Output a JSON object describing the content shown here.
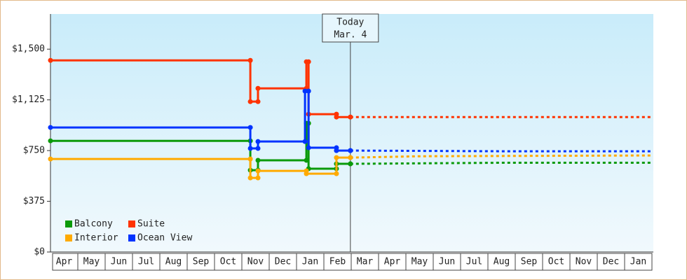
{
  "chart_data": {
    "type": "step-line",
    "categories": [
      "Apr",
      "May",
      "Jun",
      "Jul",
      "Aug",
      "Sep",
      "Oct",
      "Nov",
      "Dec",
      "Jan",
      "Feb",
      "Mar",
      "Apr",
      "May",
      "Jun",
      "Jul",
      "Aug",
      "Sep",
      "Oct",
      "Nov",
      "Dec",
      "Jan"
    ],
    "xlim": [
      0,
      22
    ],
    "ylim": [
      0,
      1760
    ],
    "yticks": [
      {
        "value": 0,
        "label": "$0"
      },
      {
        "value": 375,
        "label": "$375"
      },
      {
        "value": 750,
        "label": "$750"
      },
      {
        "value": 1125,
        "label": "$1,125"
      },
      {
        "value": 1500,
        "label": "$1,500"
      }
    ],
    "annotation": {
      "x": 10.97,
      "lines": [
        "Today",
        "Mar. 4"
      ]
    },
    "legend": "lower left",
    "series": [
      {
        "name": "Balcony",
        "color": "#0a9a0a",
        "x": [
          0,
          7.31,
          7.59,
          9.36,
          9.44,
          10.46,
          10.97
        ],
        "values": [
          822,
          605,
          678,
          952,
          616,
          652,
          652
        ],
        "forecast": {
          "x": [
            10.97,
            16.5,
            22
          ],
          "values": [
            652,
            660,
            660
          ]
        }
      },
      {
        "name": "Suite",
        "color": "#ff3300",
        "x": [
          0,
          7.31,
          7.59,
          9.36,
          9.44,
          10.46,
          10.97
        ],
        "values": [
          1417,
          1112,
          1210,
          1407,
          1019,
          998,
          998
        ],
        "forecast": {
          "x": [
            10.97,
            22
          ],
          "values": [
            998,
            998
          ]
        }
      },
      {
        "name": "Interior",
        "color": "#ffaa00",
        "x": [
          0,
          7.31,
          7.59,
          9.36,
          10.46,
          10.97
        ],
        "values": [
          688,
          548,
          600,
          579,
          698,
          698
        ],
        "forecast": {
          "x": [
            10.97,
            13.5,
            22
          ],
          "values": [
            698,
            708,
            714
          ]
        }
      },
      {
        "name": "Ocean View",
        "color": "#0033ff",
        "x": [
          0,
          7.31,
          7.59,
          9.31,
          9.44,
          10.46,
          10.97
        ],
        "values": [
          921,
          766,
          817,
          1190,
          771,
          750,
          750
        ],
        "forecast": {
          "x": [
            10.97,
            16.5,
            22
          ],
          "values": [
            750,
            745,
            745
          ]
        }
      }
    ]
  }
}
